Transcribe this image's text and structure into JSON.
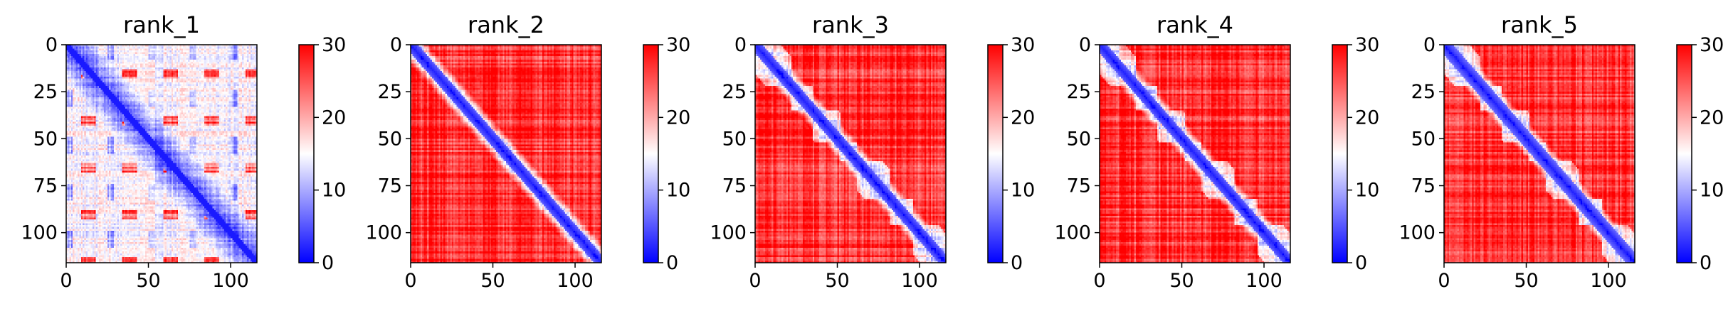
{
  "chart_data": [
    {
      "type": "heatmap",
      "title": "rank_1",
      "n": 116,
      "x_ticks": [
        0,
        50,
        100
      ],
      "y_ticks": [
        0,
        25,
        50,
        75,
        100
      ],
      "xlim": [
        0,
        116
      ],
      "ylim": [
        116,
        0
      ],
      "colorbar": {
        "range": [
          0,
          30
        ],
        "ticks": [
          0,
          10,
          20,
          30
        ],
        "colors": [
          "#0000ff",
          "#ffffff",
          "#ff0000"
        ]
      },
      "pattern": "blue main diagonal with blue off-diagonal blobs; red streaks at periodic bands (~rows 5, 25, 50, 75, 105); mostly light blue/white background"
    },
    {
      "type": "heatmap",
      "title": "rank_2",
      "n": 116,
      "x_ticks": [
        0,
        50,
        100
      ],
      "y_ticks": [
        0,
        25,
        50,
        75,
        100
      ],
      "xlim": [
        0,
        116
      ],
      "ylim": [
        116,
        0
      ],
      "colorbar": {
        "range": [
          0,
          30
        ],
        "ticks": [
          0,
          10,
          20,
          30
        ],
        "colors": [
          "#0000ff",
          "#ffffff",
          "#ff0000"
        ]
      },
      "pattern": "blue main diagonal band; red background with faint grid streaks"
    },
    {
      "type": "heatmap",
      "title": "rank_3",
      "n": 116,
      "x_ticks": [
        0,
        50,
        100
      ],
      "y_ticks": [
        0,
        25,
        50,
        75,
        100
      ],
      "xlim": [
        0,
        116
      ],
      "ylim": [
        116,
        0
      ],
      "colorbar": {
        "range": [
          0,
          30
        ],
        "ticks": [
          0,
          10,
          20,
          30
        ],
        "colors": [
          "#0000ff",
          "#ffffff",
          "#ff0000"
        ]
      },
      "pattern": "blue main diagonal band with lighter domains; red background"
    },
    {
      "type": "heatmap",
      "title": "rank_4",
      "n": 116,
      "x_ticks": [
        0,
        50,
        100
      ],
      "y_ticks": [
        0,
        25,
        50,
        75,
        100
      ],
      "xlim": [
        0,
        116
      ],
      "ylim": [
        116,
        0
      ],
      "colorbar": {
        "range": [
          0,
          30
        ],
        "ticks": [
          0,
          10,
          20,
          30
        ],
        "colors": [
          "#0000ff",
          "#ffffff",
          "#ff0000"
        ]
      },
      "pattern": "blue main diagonal band; red background with light streaks"
    },
    {
      "type": "heatmap",
      "title": "rank_5",
      "n": 116,
      "x_ticks": [
        0,
        50,
        100
      ],
      "y_ticks": [
        0,
        25,
        50,
        75,
        100
      ],
      "xlim": [
        0,
        116
      ],
      "ylim": [
        116,
        0
      ],
      "colorbar": {
        "range": [
          0,
          30
        ],
        "ticks": [
          0,
          10,
          20,
          30
        ],
        "colors": [
          "#0000ff",
          "#ffffff",
          "#ff0000"
        ]
      },
      "pattern": "blue main diagonal band; red background"
    }
  ]
}
